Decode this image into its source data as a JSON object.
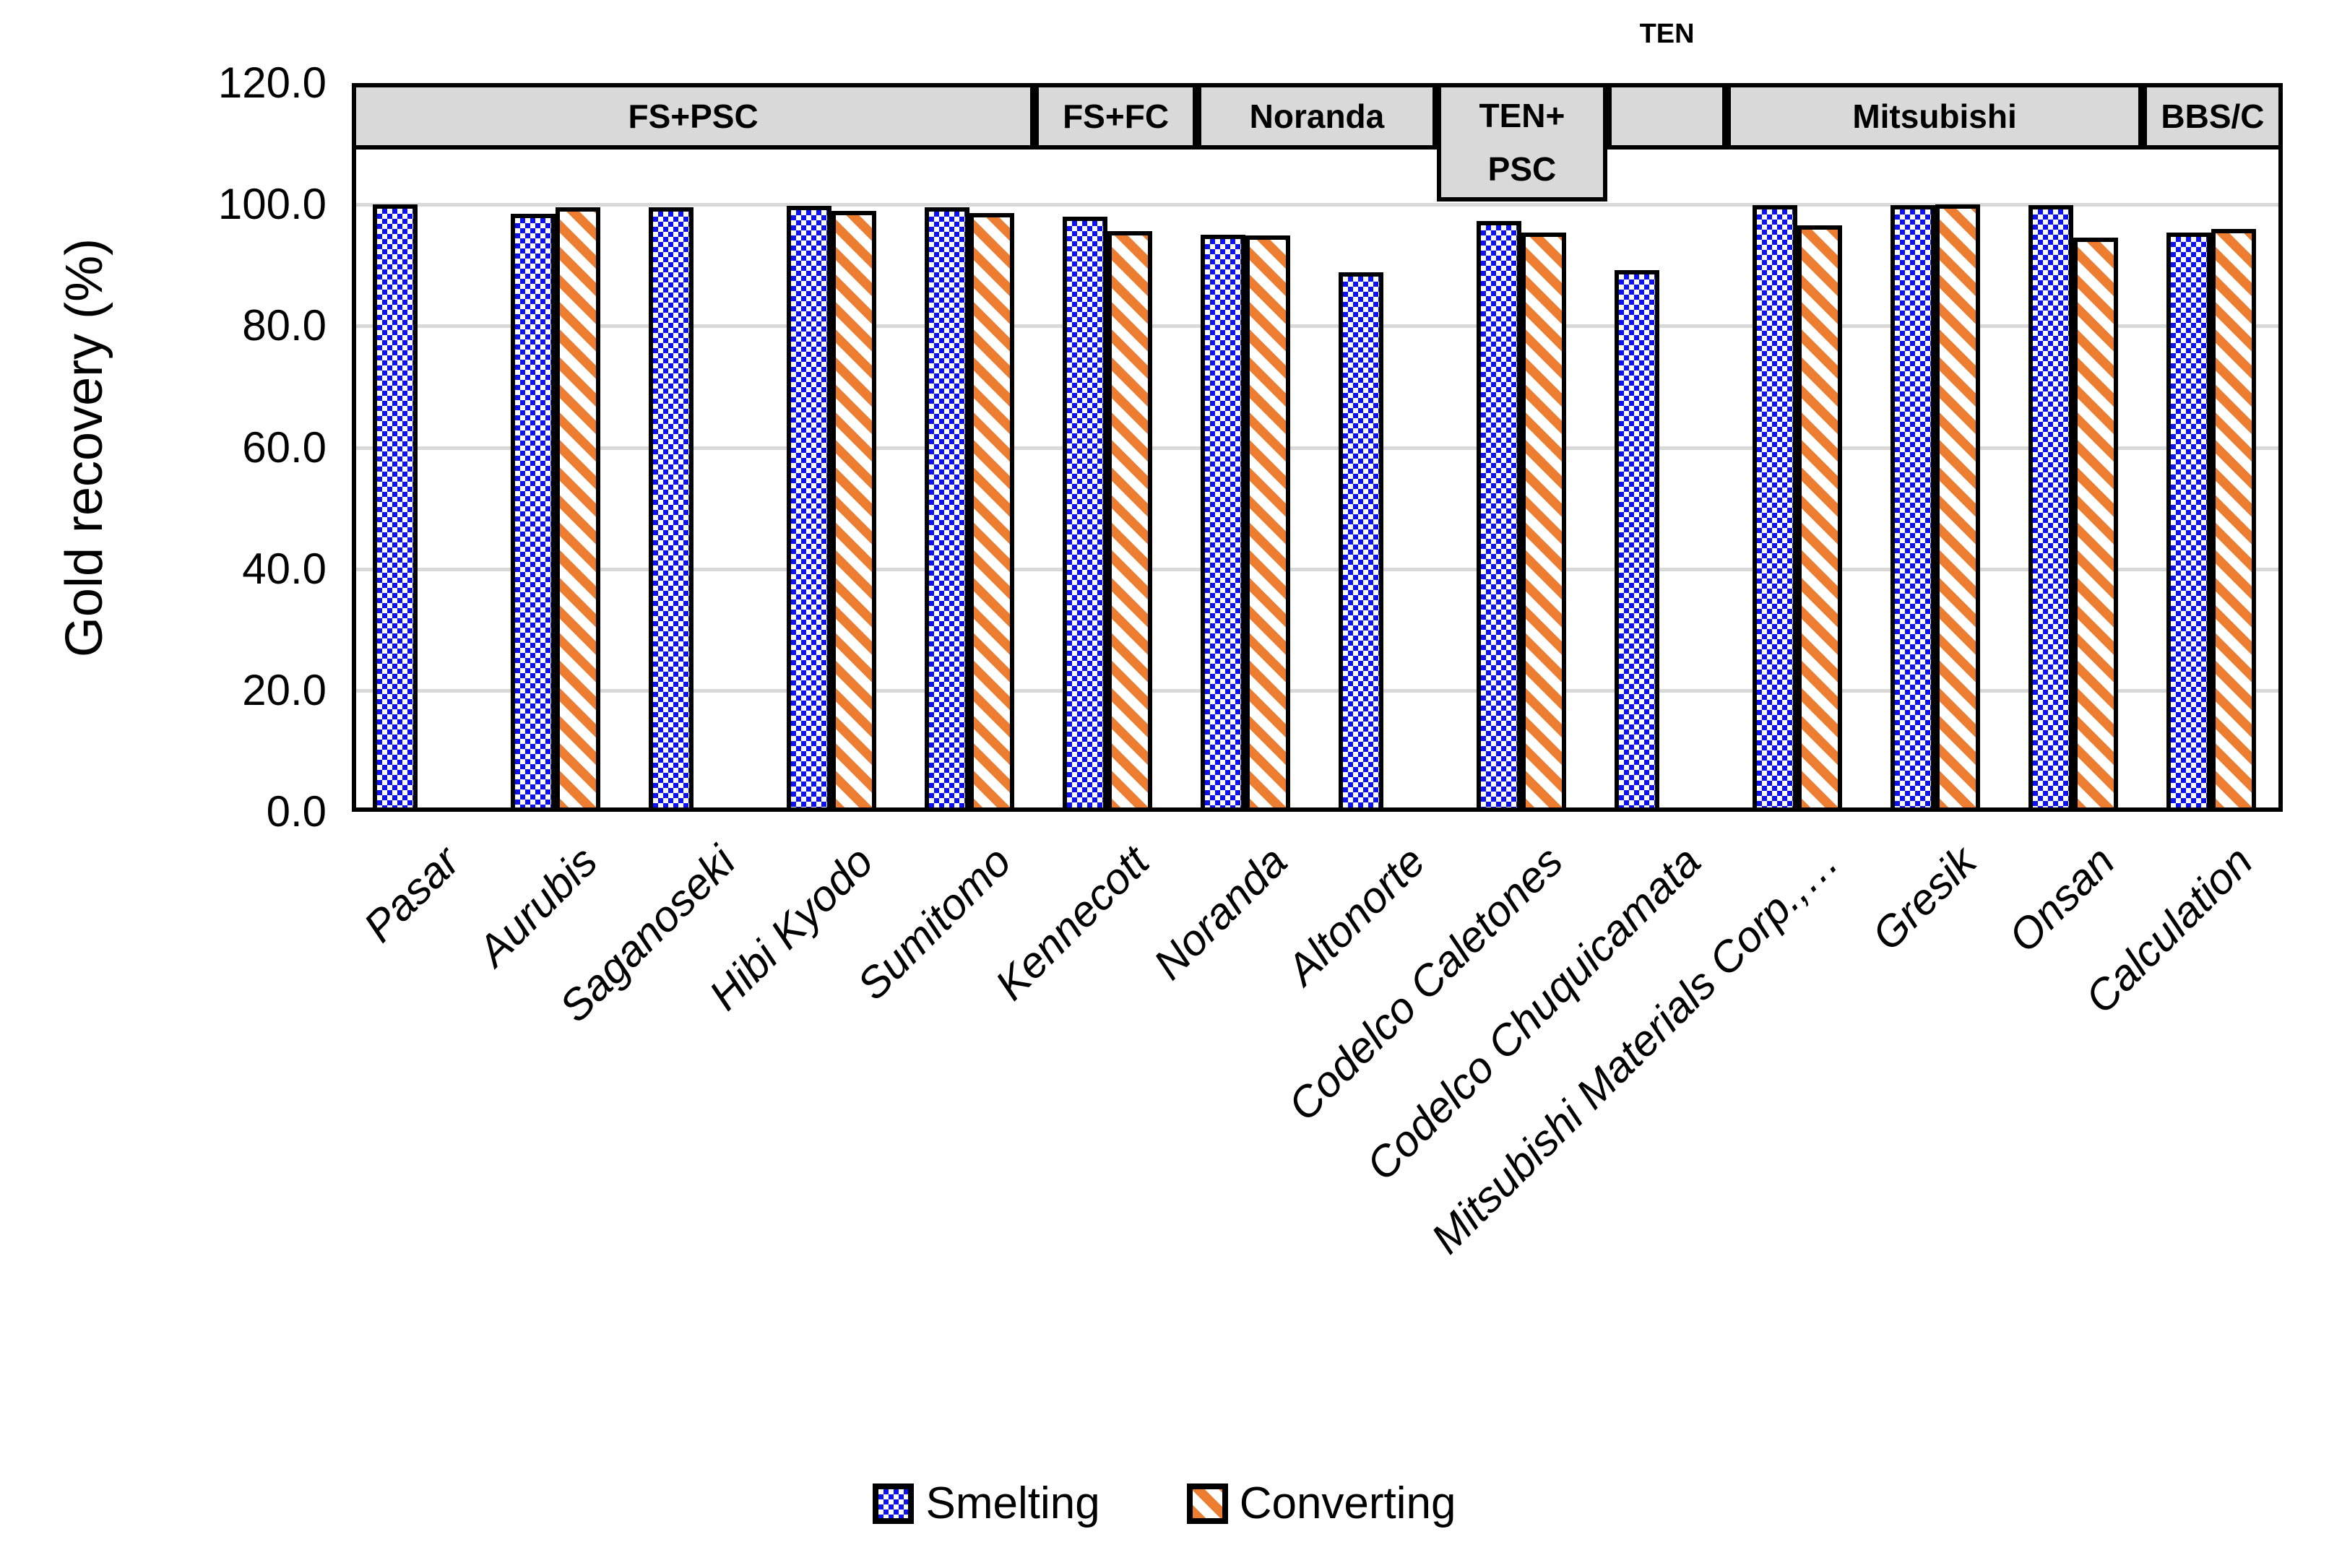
{
  "chart_data": {
    "type": "bar",
    "title": "",
    "ylabel": "Gold recovery (%)",
    "xlabel": "",
    "ylim": [
      0,
      120
    ],
    "ytick_step": 20,
    "ytick_labels": [
      "120.0",
      "100.0",
      "80.0",
      "60.0",
      "40.0",
      "20.0",
      "0.0"
    ],
    "grid": "horizontal",
    "legend_position": "bottom-center",
    "categories": [
      "Pasar",
      "Aurubis",
      "Saganoseki",
      "Hibi Kyodo",
      "Sumitomo",
      "Kennecott",
      "Noranda",
      "Altonorte",
      "Codelco Caletones",
      "Codelco Chuquicamata",
      "Mitsubishi Materials Corp.,…",
      "Gresik",
      "Onsan",
      "Calculation"
    ],
    "series": [
      {
        "name": "Smelting",
        "pattern": "blue-checkerboard",
        "color": "#0d12f2",
        "values": [
          100.0,
          98.5,
          99.5,
          99.8,
          99.5,
          98.0,
          95.0,
          88.9,
          97.3,
          89.2,
          99.9,
          99.9,
          99.9,
          95.4
        ]
      },
      {
        "name": "Converting",
        "pattern": "orange-diagonal-stripes",
        "color": "#ed7d31",
        "values": [
          null,
          99.6,
          null,
          99.0,
          98.6,
          95.6,
          94.9,
          null,
          95.4,
          null,
          96.6,
          100.0,
          94.5,
          96.0
        ]
      }
    ],
    "process_bands": [
      {
        "label": "FS+PSC",
        "lines": [
          "FS+PSC"
        ],
        "x0": 0.0,
        "x1": 0.3536,
        "tall": false,
        "label_above": ""
      },
      {
        "label": "FS+FC",
        "lines": [
          "FS+FC"
        ],
        "x0": 0.3536,
        "x1": 0.4377,
        "tall": false,
        "label_above": ""
      },
      {
        "label": "Noranda",
        "lines": [
          "Noranda"
        ],
        "x0": 0.4377,
        "x1": 0.5619,
        "tall": false,
        "label_above": ""
      },
      {
        "label": "TEN+PSC",
        "lines": [
          "TEN+",
          "PSC"
        ],
        "x0": 0.5619,
        "x1": 0.6502,
        "tall": true,
        "label_above": ""
      },
      {
        "label": "TEN",
        "lines": [],
        "x0": 0.6502,
        "x1": 0.712,
        "tall": false,
        "label_above": "TEN"
      },
      {
        "label": "Mitsubishi",
        "lines": [
          "Mitsubishi"
        ],
        "x0": 0.712,
        "x1": 0.9274,
        "tall": false,
        "label_above": ""
      },
      {
        "label": "BBS/C",
        "lines": [
          "BBS/C"
        ],
        "x0": 0.9274,
        "x1": 1.0,
        "tall": false,
        "label_above": ""
      }
    ]
  },
  "colors": {
    "smelting_blue": "#0d12f2",
    "converting_orange": "#ed7d31",
    "band_fill_gray": "#d9d9d9",
    "gridline_gray": "#d9d9d9",
    "border_black": "#000000",
    "background": "#ffffff"
  }
}
